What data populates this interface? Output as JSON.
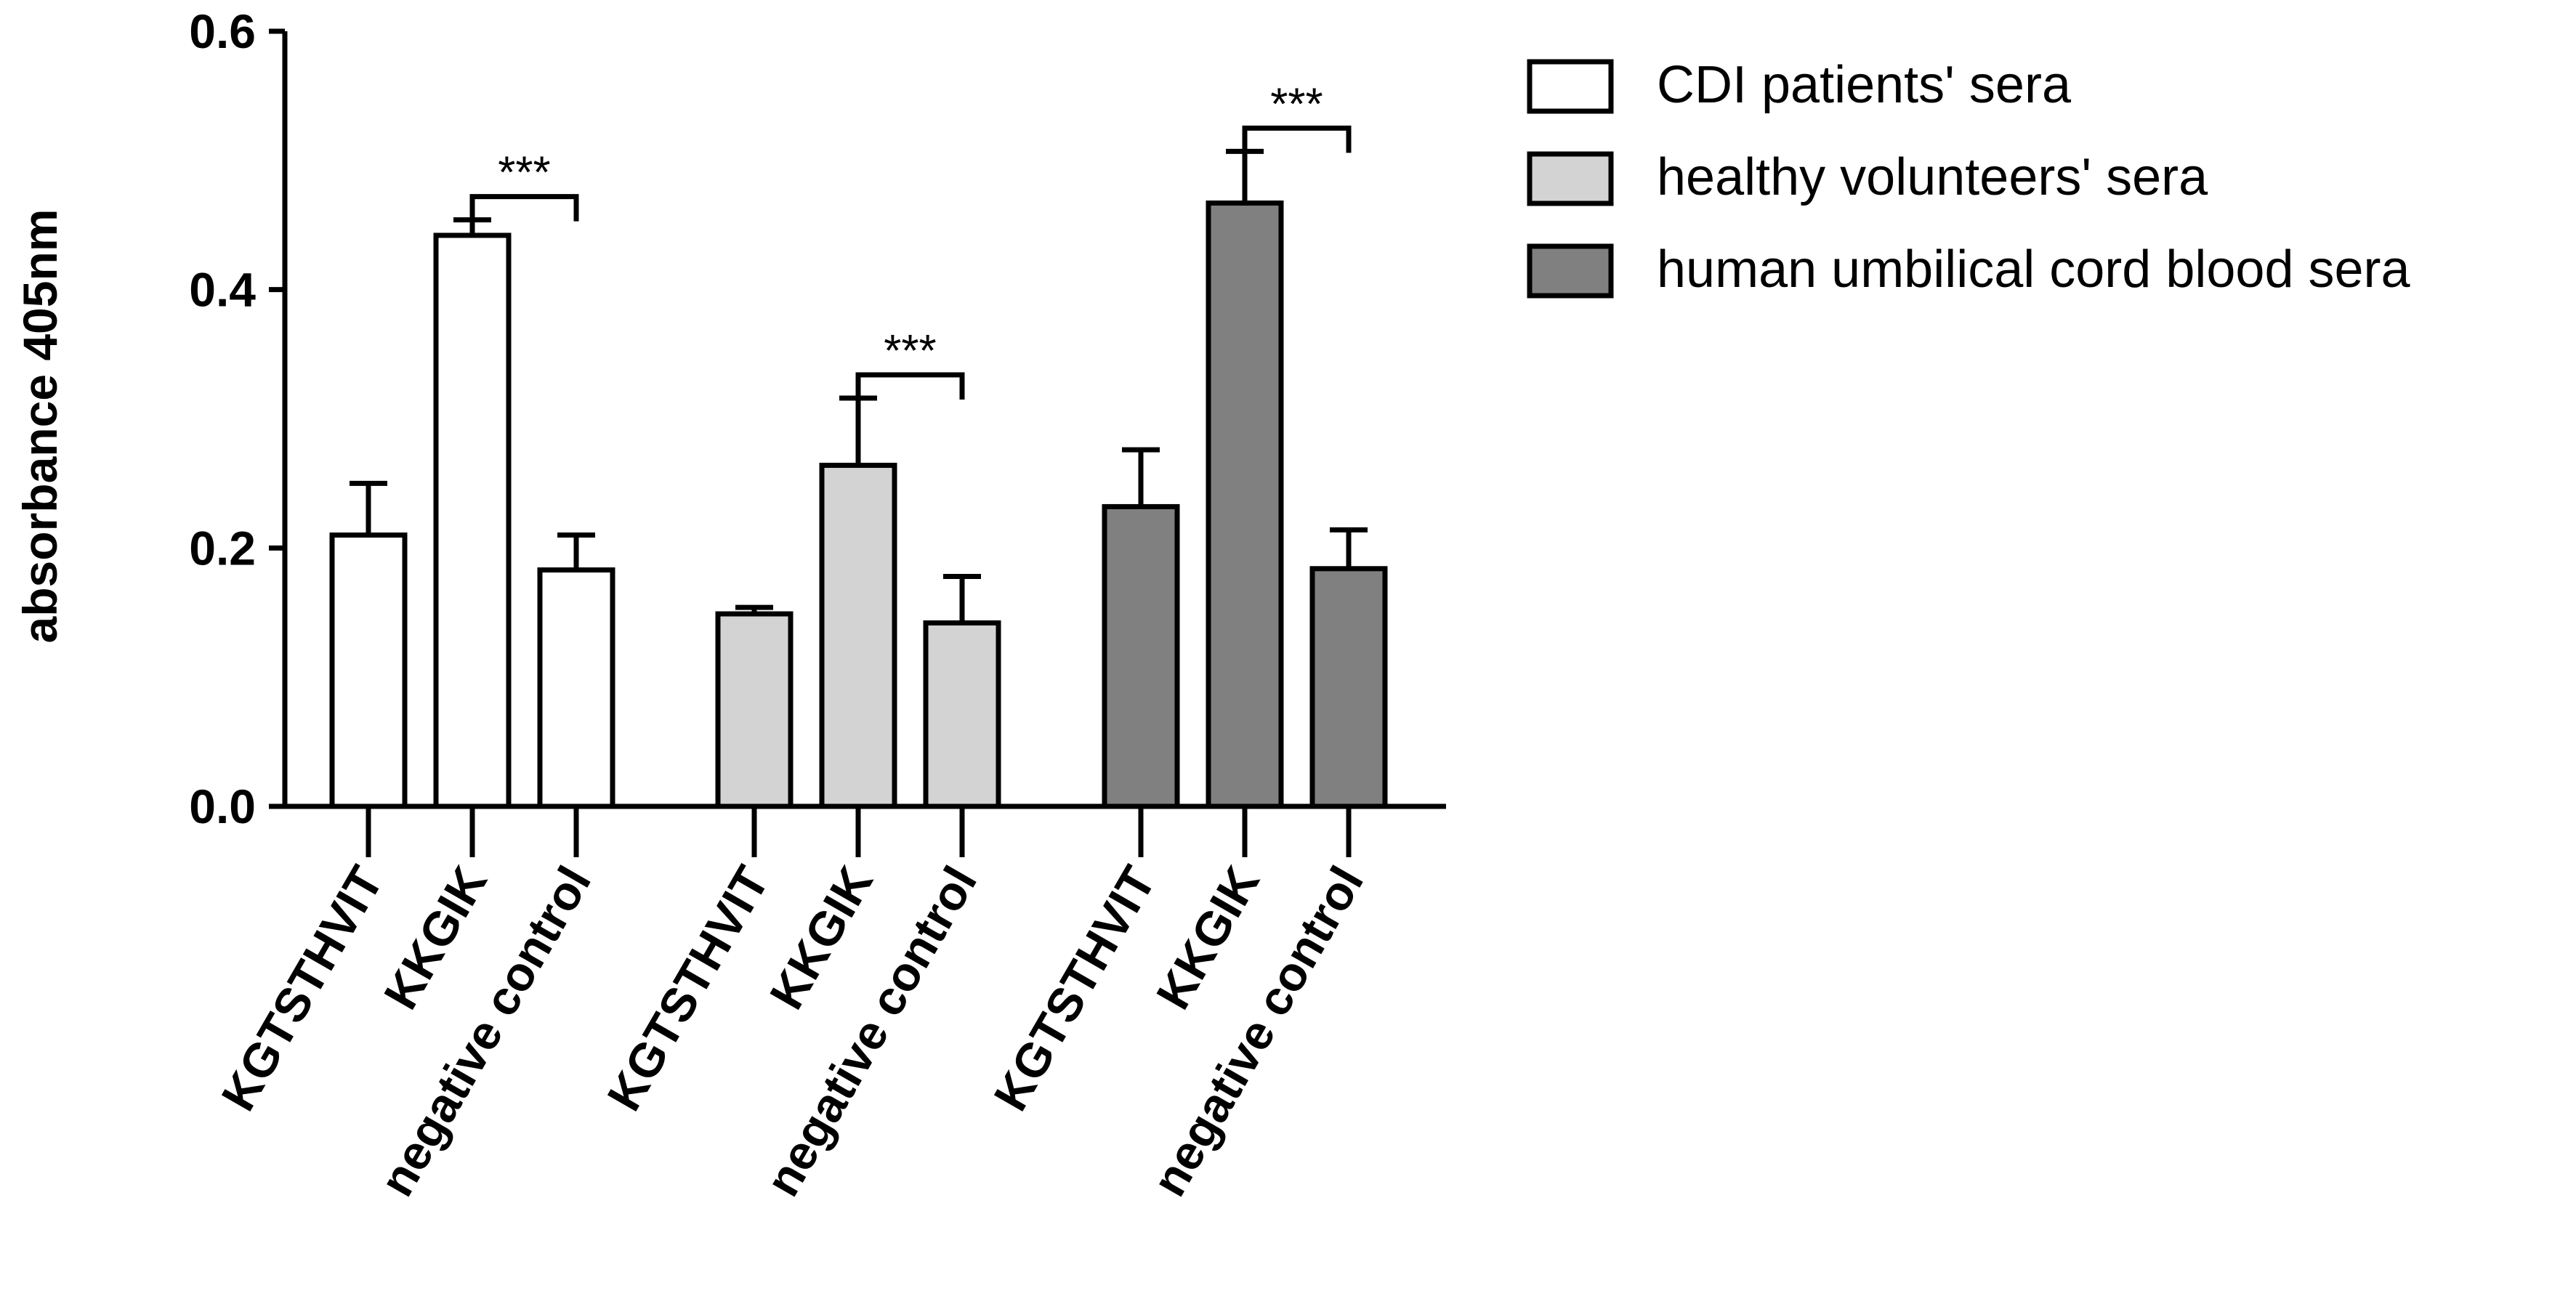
{
  "chart_data": {
    "type": "bar",
    "title": "",
    "xlabel": "",
    "ylabel": "absorbance 405nm",
    "ylim": [
      0,
      0.6
    ],
    "yticks": [
      "0.0",
      "0.2",
      "0.4",
      "0.6"
    ],
    "ytick_values": [
      0,
      0.2,
      0.4,
      0.6
    ],
    "categories": [
      "KGTSTHVIT",
      "KKGIK",
      "negative control"
    ],
    "grid": false,
    "legend_position": "top-right",
    "series": [
      {
        "name": "CDI patients' sera",
        "color": "#ffffff",
        "values": [
          0.21,
          0.442,
          0.183
        ],
        "errors": [
          0.04,
          0.012,
          0.027
        ]
      },
      {
        "name": "healthy volunteers' sera",
        "color": "#d3d3d3",
        "values": [
          0.149,
          0.264,
          0.142
        ],
        "errors": [
          0.005,
          0.052,
          0.036
        ]
      },
      {
        "name": "human umbilical cord blood sera",
        "color": "#808080",
        "values": [
          0.232,
          0.467,
          0.184
        ],
        "errors": [
          0.044,
          0.04,
          0.03
        ]
      }
    ],
    "annotations": [
      {
        "series": 0,
        "from": 1,
        "to": 2,
        "text": "***"
      },
      {
        "series": 1,
        "from": 1,
        "to": 2,
        "text": "***"
      },
      {
        "series": 2,
        "from": 1,
        "to": 2,
        "text": "***"
      }
    ]
  }
}
